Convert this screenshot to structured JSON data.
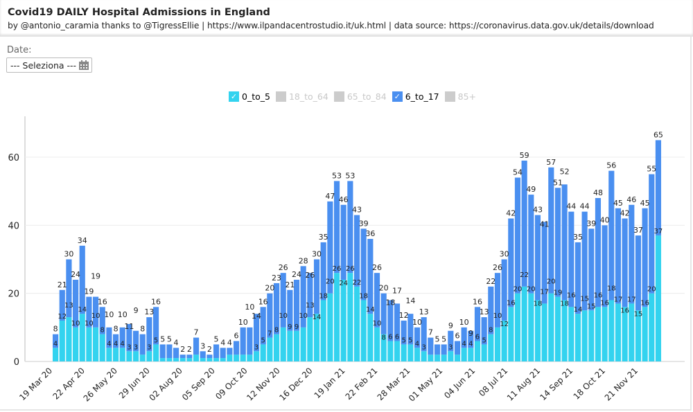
{
  "header": {
    "title": "Covid19 DAILY Hospital Admissions in England",
    "subtitle": "by @antonio_caramia thanks to @TigressEllie | https://www.ilpandacentrostudio.it/uk.html | data source: https://coronavirus.data.gov.uk/details/download"
  },
  "filter": {
    "label": "Date:",
    "value": "--- Seleziona ---",
    "icon": "calendar-icon"
  },
  "legend": [
    {
      "label": "0_to_5",
      "active": true,
      "color": "#33d3ef"
    },
    {
      "label": "18_to_64",
      "active": false,
      "color": "#cccccc"
    },
    {
      "label": "65_to_84",
      "active": false,
      "color": "#cccccc"
    },
    {
      "label": "6_to_17",
      "active": true,
      "color": "#4a8ff0"
    },
    {
      "label": "85+",
      "active": false,
      "color": "#cccccc"
    }
  ],
  "chart_data": {
    "type": "bar",
    "stacked": true,
    "ylim": [
      0,
      72
    ],
    "yticks": [
      0,
      20,
      40,
      60
    ],
    "grid": true,
    "legend_position": "top",
    "xlim": [
      "19 Mar 20",
      "12 Dec 21"
    ],
    "xticks": [
      "19 Mar 20",
      "22 Apr 20",
      "26 May 20",
      "29 Jun 20",
      "02 Aug 20",
      "05 Sep 20",
      "09 Oct 20",
      "12 Nov 20",
      "16 Dec 20",
      "19 Jan 21",
      "22 Feb 21",
      "28 Mar 21",
      "01 May 21",
      "04 Jun 21",
      "08 Jul 21",
      "11 Aug 21",
      "14 Sep 21",
      "18 Oct 21",
      "21 Nov 21"
    ],
    "x": [
      "19 Mar 20",
      "26 Mar 20",
      "02 Apr 20",
      "09 Apr 20",
      "16 Apr 20",
      "23 Apr 20",
      "30 Apr 20",
      "07 May 20",
      "14 May 20",
      "21 May 20",
      "28 May 20",
      "04 Jun 20",
      "11 Jun 20",
      "18 Jun 20",
      "25 Jun 20",
      "02 Jul 20",
      "09 Jul 20",
      "16 Jul 20",
      "23 Jul 20",
      "30 Jul 20",
      "06 Aug 20",
      "13 Aug 20",
      "20 Aug 20",
      "27 Aug 20",
      "03 Sep 20",
      "10 Sep 20",
      "17 Sep 20",
      "24 Sep 20",
      "01 Oct 20",
      "08 Oct 20",
      "15 Oct 20",
      "22 Oct 20",
      "29 Oct 20",
      "05 Nov 20",
      "12 Nov 20",
      "19 Nov 20",
      "26 Nov 20",
      "03 Dec 20",
      "10 Dec 20",
      "17 Dec 20",
      "24 Dec 20",
      "31 Dec 20",
      "07 Jan 21",
      "14 Jan 21",
      "21 Jan 21",
      "28 Jan 21",
      "04 Feb 21",
      "11 Feb 21",
      "18 Feb 21",
      "25 Feb 21",
      "04 Mar 21",
      "11 Mar 21",
      "18 Mar 21",
      "25 Mar 21",
      "01 Apr 21",
      "08 Apr 21",
      "15 Apr 21",
      "22 Apr 21",
      "29 Apr 21",
      "06 May 21",
      "13 May 21",
      "20 May 21",
      "27 May 21",
      "03 Jun 21",
      "10 Jun 21",
      "17 Jun 21",
      "24 Jun 21",
      "01 Jul 21",
      "08 Jul 21",
      "15 Jul 21",
      "22 Jul 21",
      "29 Jul 21",
      "05 Aug 21",
      "12 Aug 21",
      "19 Aug 21",
      "26 Aug 21",
      "02 Sep 21",
      "09 Sep 21",
      "16 Sep 21",
      "23 Sep 21",
      "30 Sep 21",
      "07 Oct 21",
      "14 Oct 21",
      "21 Oct 21",
      "28 Oct 21",
      "04 Nov 21",
      "11 Nov 21",
      "18 Nov 21",
      "25 Nov 21",
      "02 Dec 21",
      "09 Dec 21"
    ],
    "series": [
      {
        "name": "0_to_5",
        "values": [
          4,
          12,
          13,
          10,
          14,
          10,
          10,
          8,
          4,
          4,
          4,
          3,
          3,
          2,
          3,
          5,
          1,
          1,
          1,
          1,
          1,
          2,
          1,
          1,
          1,
          1,
          2,
          2,
          2,
          2,
          3,
          5,
          7,
          8,
          10,
          9,
          9,
          10,
          13,
          14,
          18,
          20,
          26,
          24,
          26,
          22,
          18,
          14,
          10,
          8,
          6,
          6,
          5,
          5,
          4,
          3,
          2,
          2,
          2,
          3,
          2,
          4,
          4,
          6,
          5,
          8,
          10,
          12,
          16,
          20,
          22,
          20,
          18,
          17,
          20,
          19,
          18,
          16,
          14,
          15,
          15,
          16,
          16,
          18,
          17,
          16,
          17,
          15,
          16,
          20,
          37
        ]
      },
      {
        "name": "6_to_17",
        "values": [
          4,
          9,
          17,
          14,
          20,
          9,
          9,
          8,
          6,
          4,
          6,
          8,
          6,
          6,
          10,
          11,
          4,
          4,
          3,
          1,
          1,
          5,
          2,
          1,
          4,
          3,
          2,
          4,
          8,
          8,
          11,
          11,
          13,
          15,
          16,
          12,
          15,
          18,
          13,
          16,
          17,
          27,
          27,
          22,
          27,
          21,
          21,
          22,
          16,
          12,
          12,
          11,
          7,
          9,
          6,
          10,
          5,
          3,
          3,
          6,
          4,
          6,
          5,
          10,
          8,
          14,
          16,
          18,
          26,
          34,
          37,
          29,
          25,
          24,
          37,
          32,
          34,
          28,
          21,
          29,
          24,
          32,
          24,
          38,
          28,
          26,
          29,
          22,
          29,
          35,
          28
        ]
      }
    ]
  }
}
